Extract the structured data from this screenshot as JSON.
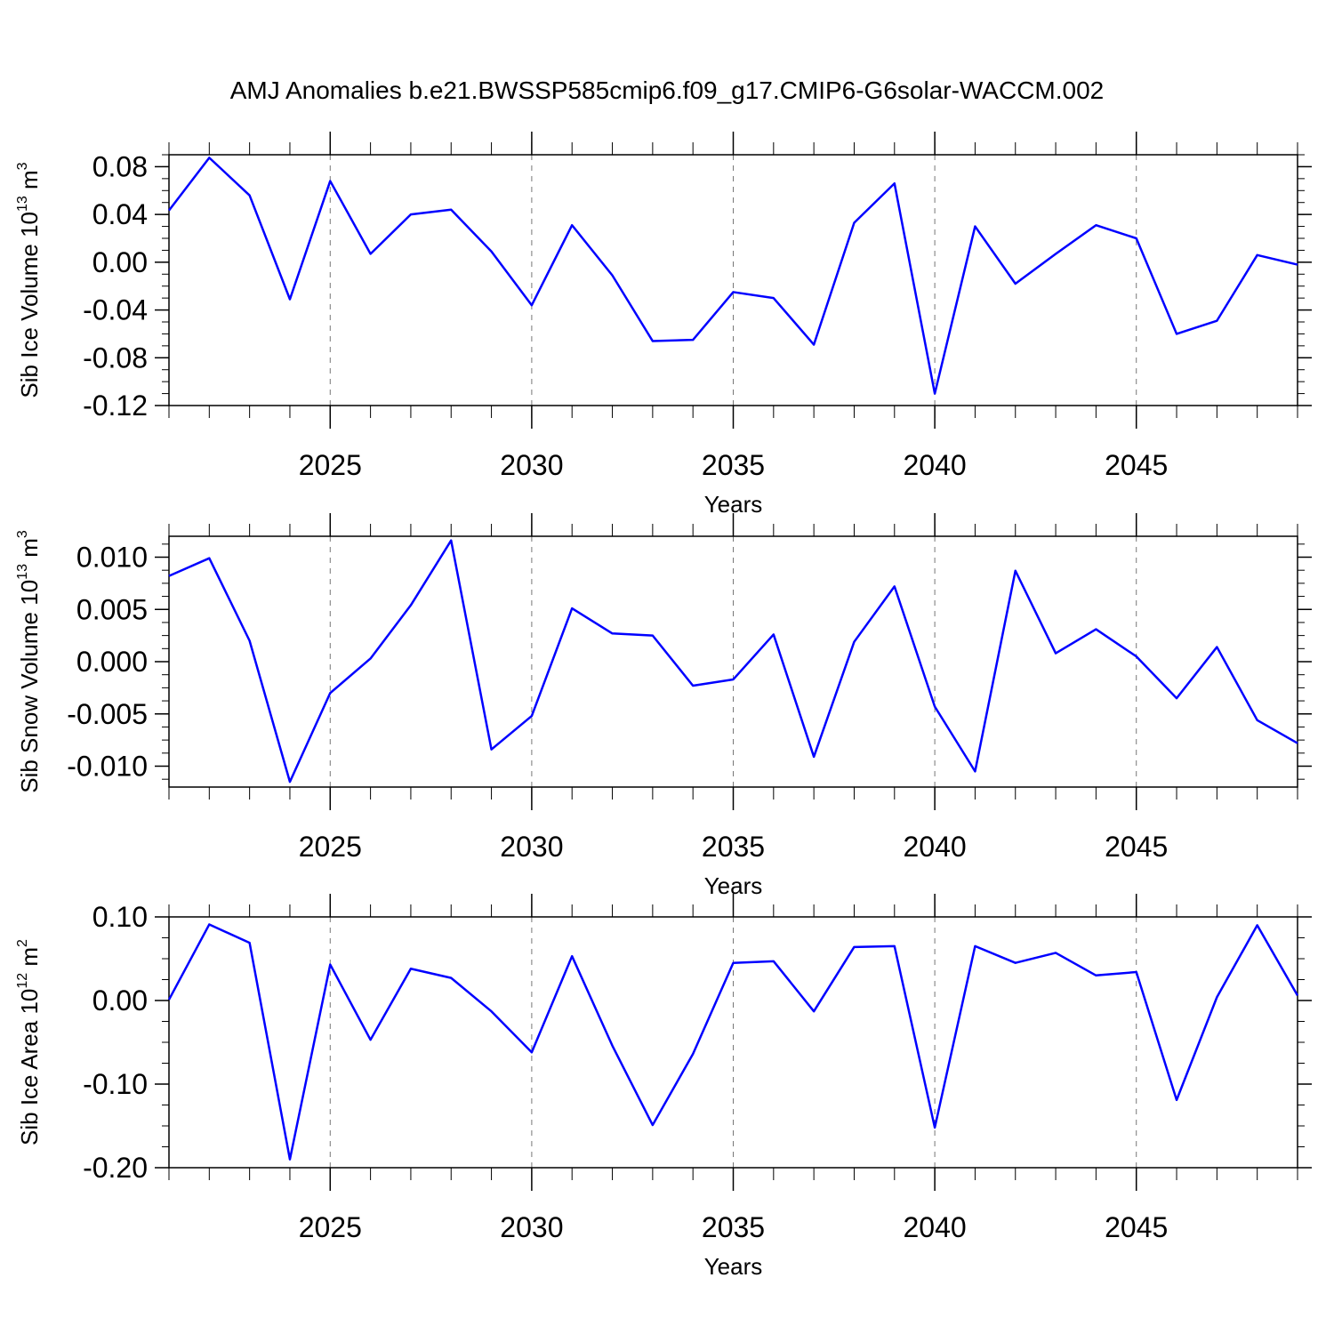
{
  "chart_data": [
    {
      "type": "line",
      "title": "AMJ Anomalies b.e21.BWSSP585cmip6.f09_g17.CMIP6-G6solar-WACCM.002",
      "xlabel": "Years",
      "ylabel": [
        "Sib Ice Volume 10",
        "13",
        " m",
        "3"
      ],
      "x": [
        2021,
        2022,
        2023,
        2024,
        2025,
        2026,
        2027,
        2028,
        2029,
        2030,
        2031,
        2032,
        2033,
        2034,
        2035,
        2036,
        2037,
        2038,
        2039,
        2040,
        2041,
        2042,
        2043,
        2044,
        2045,
        2046,
        2047,
        2048,
        2049
      ],
      "series": [
        {
          "color": "#0000ff",
          "values": [
            0.0434,
            0.0875,
            0.056,
            -0.031,
            0.068,
            0.007,
            0.04,
            0.044,
            0.009,
            -0.036,
            0.031,
            -0.011,
            -0.066,
            -0.065,
            -0.025,
            -0.03,
            -0.069,
            0.033,
            0.066,
            -0.11,
            0.03,
            -0.018,
            0.007,
            0.031,
            0.02,
            -0.06,
            -0.049,
            0.006,
            -0.002
          ]
        }
      ],
      "xlim": [
        2021,
        2049
      ],
      "xticks": [
        2025,
        2030,
        2035,
        2040,
        2045
      ],
      "ylim": [
        -0.12,
        0.09
      ],
      "yticks": [
        {
          "value": -0.12,
          "label": "-0.12"
        },
        {
          "value": -0.08,
          "label": "-0.08"
        },
        {
          "value": -0.04,
          "label": "-0.04"
        },
        {
          "value": 0,
          "label": "0.00"
        },
        {
          "value": 0.04,
          "label": "0.04"
        },
        {
          "value": 0.08,
          "label": "0.08"
        }
      ],
      "grid": "x"
    },
    {
      "type": "line",
      "xlabel": "Years",
      "ylabel": [
        "Sib Snow Volume 10",
        "13",
        " m",
        "3"
      ],
      "x": [
        2021,
        2022,
        2023,
        2024,
        2025,
        2026,
        2027,
        2028,
        2029,
        2030,
        2031,
        2032,
        2033,
        2034,
        2035,
        2036,
        2037,
        2038,
        2039,
        2040,
        2041,
        2042,
        2043,
        2044,
        2045,
        2046,
        2047,
        2048,
        2049
      ],
      "series": [
        {
          "color": "#0000ff",
          "values": [
            0.0082,
            0.0099,
            0.002,
            -0.0115,
            -0.003,
            0.0003,
            0.0054,
            0.0116,
            -0.0084,
            -0.0052,
            0.0051,
            0.0027,
            0.0025,
            -0.0023,
            -0.0017,
            0.0026,
            -0.0091,
            0.0019,
            0.0072,
            -0.0043,
            -0.0105,
            0.0087,
            0.0008,
            0.0031,
            0.0005,
            -0.0035,
            0.0014,
            -0.0056,
            -0.0078
          ]
        }
      ],
      "xlim": [
        2021,
        2049
      ],
      "xticks": [
        2025,
        2030,
        2035,
        2040,
        2045
      ],
      "ylim": [
        -0.012,
        0.012
      ],
      "yticks": [
        {
          "value": -0.01,
          "label": "-0.010"
        },
        {
          "value": -0.005,
          "label": "-0.005"
        },
        {
          "value": 0,
          "label": "0.000"
        },
        {
          "value": 0.005,
          "label": "0.005"
        },
        {
          "value": 0.01,
          "label": "0.010"
        }
      ],
      "grid": "x"
    },
    {
      "type": "line",
      "xlabel": "Years",
      "ylabel": [
        "Sib Ice Area 10",
        "12",
        " m",
        "2"
      ],
      "x": [
        2021,
        2022,
        2023,
        2024,
        2025,
        2026,
        2027,
        2028,
        2029,
        2030,
        2031,
        2032,
        2033,
        2034,
        2035,
        2036,
        2037,
        2038,
        2039,
        2040,
        2041,
        2042,
        2043,
        2044,
        2045,
        2046,
        2047,
        2048,
        2049
      ],
      "series": [
        {
          "color": "#0000ff",
          "values": [
            0.001,
            0.091,
            0.069,
            -0.19,
            0.043,
            -0.047,
            0.038,
            0.027,
            -0.013,
            -0.062,
            0.053,
            -0.054,
            -0.149,
            -0.064,
            0.045,
            0.047,
            -0.013,
            0.064,
            0.065,
            -0.152,
            0.065,
            0.045,
            0.057,
            0.03,
            0.034,
            -0.119,
            0.004,
            0.09,
            0.006
          ]
        }
      ],
      "xlim": [
        2021,
        2049
      ],
      "xticks": [
        2025,
        2030,
        2035,
        2040,
        2045
      ],
      "ylim": [
        -0.2,
        0.1
      ],
      "yticks": [
        {
          "value": -0.2,
          "label": "-0.20"
        },
        {
          "value": -0.1,
          "label": "-0.10"
        },
        {
          "value": 0,
          "label": "0.00"
        },
        {
          "value": 0.1,
          "label": "0.10"
        }
      ],
      "grid": "x"
    }
  ]
}
